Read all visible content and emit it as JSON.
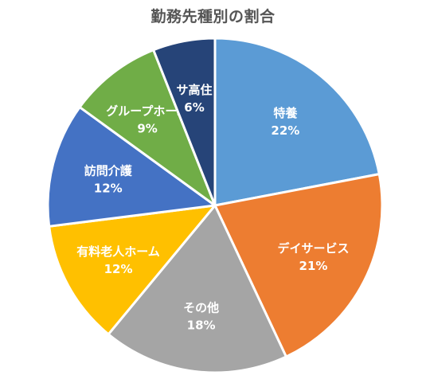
{
  "chart_data": {
    "type": "pie",
    "title": "勤務先種別の割合",
    "slices": [
      {
        "name": "特養",
        "value": 22,
        "label": "22%",
        "color": "#5b9bd5"
      },
      {
        "name": "デイサービス",
        "value": 21,
        "label": "21%",
        "color": "#ed7d31"
      },
      {
        "name": "その他",
        "value": 18,
        "label": "18%",
        "color": "#a5a5a5"
      },
      {
        "name": "有料老人ホーム",
        "value": 12,
        "label": "12%",
        "color": "#ffc000"
      },
      {
        "name": "訪問介護",
        "value": 12,
        "label": "12%",
        "color": "#4472c4"
      },
      {
        "name": "グループホーム",
        "value": 9,
        "label": "9%",
        "color": "#70ad47"
      },
      {
        "name": "サ高住",
        "value": 6,
        "label": "6%",
        "color": "#264478"
      }
    ],
    "start_angle": "12 o'clock",
    "direction": "clockwise",
    "legend": "none"
  }
}
